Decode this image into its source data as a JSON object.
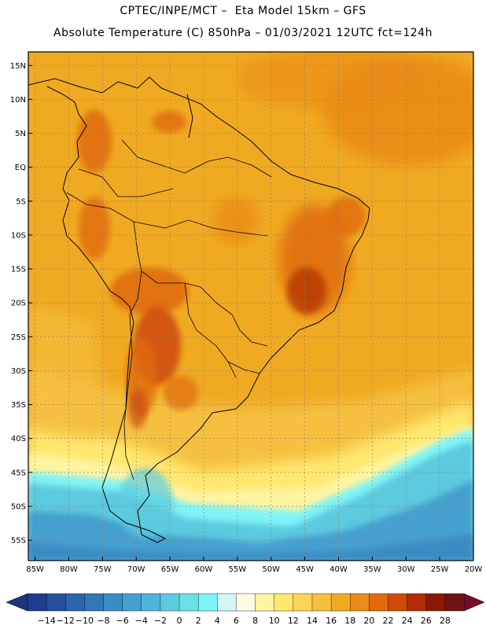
{
  "header": {
    "line1": "CPTEC/INPE/MCT –  Eta Model 15km – GFS",
    "line2": "Absolute Temperature (C) 850hPa – 01/03/2021 12UTC fct=124h"
  },
  "map": {
    "lon_range": [
      -86,
      -20
    ],
    "lat_range": [
      -58,
      17
    ],
    "lat_ticks": [
      {
        "value": 15,
        "label": "15N"
      },
      {
        "value": 10,
        "label": "10N"
      },
      {
        "value": 5,
        "label": "5N"
      },
      {
        "value": 0,
        "label": "EQ"
      },
      {
        "value": -5,
        "label": "5S"
      },
      {
        "value": -10,
        "label": "10S"
      },
      {
        "value": -15,
        "label": "15S"
      },
      {
        "value": -20,
        "label": "20S"
      },
      {
        "value": -25,
        "label": "25S"
      },
      {
        "value": -30,
        "label": "30S"
      },
      {
        "value": -35,
        "label": "35S"
      },
      {
        "value": -40,
        "label": "40S"
      },
      {
        "value": -45,
        "label": "45S"
      },
      {
        "value": -50,
        "label": "50S"
      },
      {
        "value": -55,
        "label": "55S"
      }
    ],
    "lon_ticks": [
      {
        "value": -85,
        "label": "85W"
      },
      {
        "value": -80,
        "label": "80W"
      },
      {
        "value": -75,
        "label": "75W"
      },
      {
        "value": -70,
        "label": "70W"
      },
      {
        "value": -65,
        "label": "65W"
      },
      {
        "value": -60,
        "label": "60W"
      },
      {
        "value": -55,
        "label": "55W"
      },
      {
        "value": -50,
        "label": "50W"
      },
      {
        "value": -45,
        "label": "45W"
      },
      {
        "value": -40,
        "label": "40W"
      },
      {
        "value": -35,
        "label": "35W"
      },
      {
        "value": -30,
        "label": "30W"
      },
      {
        "value": -25,
        "label": "25W"
      },
      {
        "value": -20,
        "label": "20W"
      }
    ]
  },
  "colorbar": {
    "labels": [
      "-14",
      "-12",
      "-10",
      "-8",
      "-6",
      "-4",
      "-2",
      "0",
      "2",
      "4",
      "6",
      "8",
      "10",
      "12",
      "14",
      "16",
      "18",
      "20",
      "22",
      "24",
      "26",
      "28"
    ],
    "colors": [
      "#1f3d8c",
      "#24509e",
      "#2b65ad",
      "#3178b8",
      "#3a8cc4",
      "#44a0cf",
      "#4fb4d9",
      "#5ccadf",
      "#6be0e8",
      "#7ff4f6",
      "#d2f5f8",
      "#fffbe6",
      "#fff4a0",
      "#ffe870",
      "#fbd55a",
      "#f5c040",
      "#f0aa22",
      "#ea8c18",
      "#e06a0c",
      "#cf4a08",
      "#b02d06",
      "#8a1a06",
      "#6e1414"
    ],
    "low_color": "#1c357f",
    "high_color": "#7a0a2a"
  }
}
